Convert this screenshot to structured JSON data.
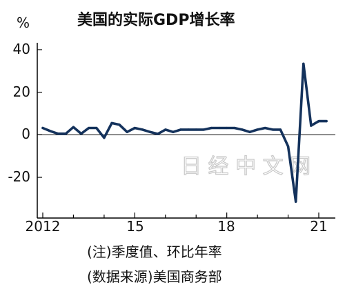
{
  "chart_data": {
    "type": "line",
    "title": "美国的实际GDP增长率",
    "unit_label": "%",
    "xlabel": "",
    "ylabel": "",
    "ylim": [
      -35,
      42
    ],
    "yticks": [
      40,
      20,
      0,
      -20
    ],
    "ytick_labels": [
      "40",
      "20",
      "0",
      "-20"
    ],
    "xticks": [
      {
        "x": 2012.0,
        "label": "2012"
      },
      {
        "x": 2015.0,
        "label": "15"
      },
      {
        "x": 2018.0,
        "label": "18"
      },
      {
        "x": 2021.0,
        "label": "21"
      }
    ],
    "xlim": [
      2011.9,
      2021.65
    ],
    "grid": false,
    "series": [
      {
        "color": "#14325c",
        "points": [
          {
            "x": 2012.0,
            "y": 3.2
          },
          {
            "x": 2012.25,
            "y": 1.7
          },
          {
            "x": 2012.5,
            "y": 0.5
          },
          {
            "x": 2012.75,
            "y": 0.5
          },
          {
            "x": 2013.0,
            "y": 3.6
          },
          {
            "x": 2013.25,
            "y": 0.5
          },
          {
            "x": 2013.5,
            "y": 3.2
          },
          {
            "x": 2013.75,
            "y": 3.2
          },
          {
            "x": 2014.0,
            "y": -1.4
          },
          {
            "x": 2014.25,
            "y": 5.5
          },
          {
            "x": 2014.5,
            "y": 4.7
          },
          {
            "x": 2014.75,
            "y": 1.3
          },
          {
            "x": 2015.0,
            "y": 3.2
          },
          {
            "x": 2015.25,
            "y": 2.4
          },
          {
            "x": 2015.5,
            "y": 1.3
          },
          {
            "x": 2015.75,
            "y": 0.4
          },
          {
            "x": 2016.0,
            "y": 2.4
          },
          {
            "x": 2016.25,
            "y": 1.3
          },
          {
            "x": 2016.5,
            "y": 2.4
          },
          {
            "x": 2016.75,
            "y": 2.4
          },
          {
            "x": 2017.0,
            "y": 2.4
          },
          {
            "x": 2017.25,
            "y": 2.4
          },
          {
            "x": 2017.5,
            "y": 3.2
          },
          {
            "x": 2017.75,
            "y": 3.2
          },
          {
            "x": 2018.0,
            "y": 3.2
          },
          {
            "x": 2018.25,
            "y": 3.2
          },
          {
            "x": 2018.5,
            "y": 2.4
          },
          {
            "x": 2018.75,
            "y": 1.3
          },
          {
            "x": 2019.0,
            "y": 2.4
          },
          {
            "x": 2019.25,
            "y": 3.2
          },
          {
            "x": 2019.5,
            "y": 2.4
          },
          {
            "x": 2019.75,
            "y": 2.4
          },
          {
            "x": 2020.0,
            "y": -5.5
          },
          {
            "x": 2020.25,
            "y": -31.4
          },
          {
            "x": 2020.5,
            "y": 33.4
          },
          {
            "x": 2020.75,
            "y": 4.3
          },
          {
            "x": 2021.0,
            "y": 6.4
          },
          {
            "x": 2021.25,
            "y": 6.4
          }
        ]
      }
    ]
  },
  "notes": [
    "(注)季度值、环比年率",
    "(数据来源)美国商务部"
  ],
  "watermark": "日 经 中 文 网"
}
